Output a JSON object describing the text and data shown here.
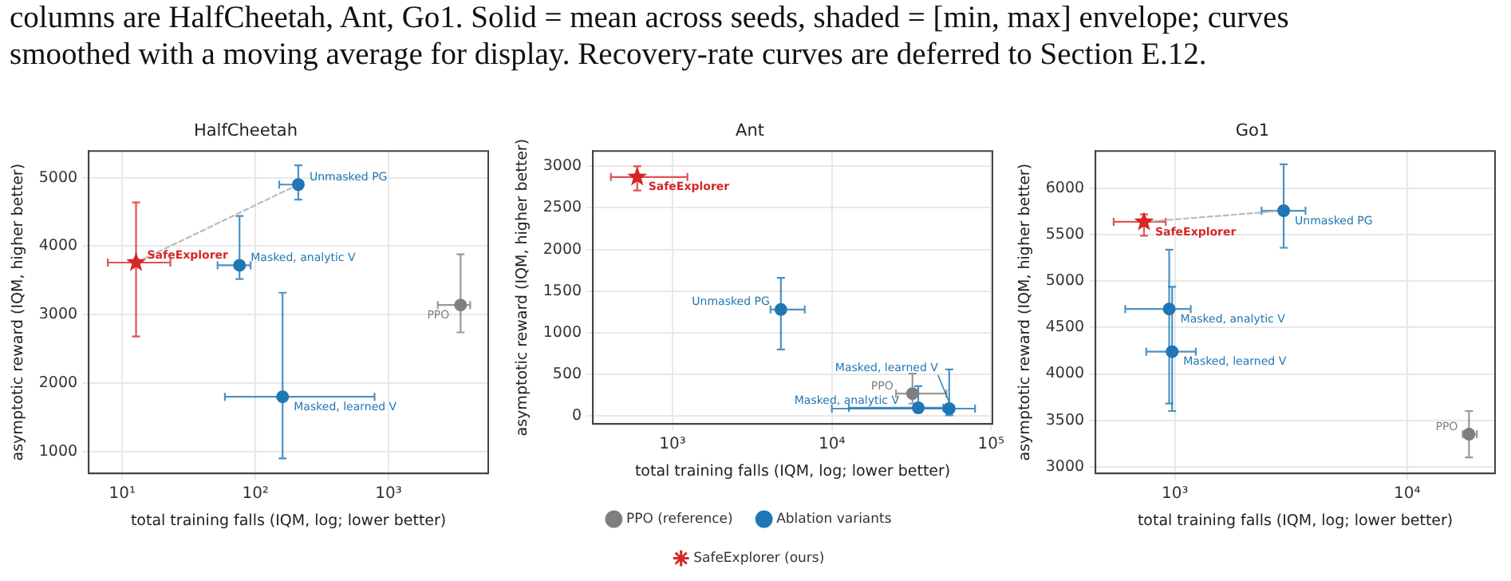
{
  "chart_data": [
    {
      "type": "scatter",
      "title": "HalfCheetah",
      "xlabel": "total training falls (IQM, log; lower better)",
      "ylabel": "asymptotic reward (IQM, higher better)",
      "log": "x",
      "grid": true,
      "legend": false,
      "xlim": [
        5.6,
        5600
      ],
      "xticks": [
        {
          "value": 10,
          "label": "10¹"
        },
        {
          "value": 100,
          "label": "10²"
        },
        {
          "value": 1000,
          "label": "10³"
        }
      ],
      "ylim": [
        680,
        5390
      ],
      "yticks": [
        1000,
        2000,
        3000,
        4000,
        5000
      ],
      "series": [
        {
          "type": "line",
          "color": "#bbbbbb",
          "marker": "none",
          "line_style": "dashed",
          "x": [
            12.7,
            210
          ],
          "values": [
            3760,
            4900
          ]
        },
        {
          "color": "#7f7f7f",
          "marker": "circle",
          "x": [
            3470
          ],
          "values": [
            3140
          ],
          "errors": [
            [
              2740,
              3880
            ]
          ],
          "xerrors": [
            [
              2340,
              4100
            ]
          ]
        },
        {
          "color": "#1f77b4",
          "marker": "circle",
          "x": [
            210,
            76,
            160
          ],
          "values": [
            4900,
            3720,
            1800
          ],
          "errors": [
            [
              4680,
              5180
            ],
            [
              3520,
              4440
            ],
            [
              900,
              3320
            ]
          ],
          "xerrors": [
            [
              151,
              220
            ],
            [
              52,
              92
            ],
            [
              59,
              785
            ]
          ]
        },
        {
          "color": "#d62728",
          "marker": "star",
          "x": [
            12.7
          ],
          "values": [
            3760
          ],
          "errors": [
            [
              2680,
              4640
            ]
          ],
          "xerrors": [
            [
              7.8,
              23
            ]
          ]
        }
      ],
      "annotations": [
        "columns are HalfCheetah, Ant, Go1. Solid = mean across seeds, shaded = [min, max] envelope; curves smoothed with a moving average for display. Recovery-rate curves are deferred to Section E.12.",
        {
          "text": "Unmasked PG",
          "x": 210,
          "y": 4900
        },
        {
          "text": "Masked, analytic V",
          "x": 76,
          "y": 3720
        },
        {
          "text": "Masked, learned V",
          "x": 160,
          "y": 1800
        },
        {
          "text": "PPO",
          "x": 3470,
          "y": 3140
        },
        {
          "text": "SafeExplorer",
          "x": 12.7,
          "y": 3760
        }
      ]
    },
    {
      "type": "scatter",
      "title": "Ant",
      "xlabel": "total training falls (IQM, log; lower better)",
      "ylabel": "asymptotic reward (IQM, higher better)",
      "log": "x",
      "grid": true,
      "legend": "bottom",
      "xlim": [
        316,
        102000
      ],
      "xticks": [
        {
          "value": 1000,
          "label": "10³"
        },
        {
          "value": 10000,
          "label": "10⁴"
        },
        {
          "value": 100000,
          "label": "10⁵"
        }
      ],
      "ylim": [
        -94,
        3183
      ],
      "yticks": [
        0,
        500,
        1000,
        1500,
        2000,
        2500,
        3000
      ],
      "series": [
        {
          "name": "PPO (reference)",
          "color": "#7f7f7f",
          "marker": "circle",
          "x": [
            32100
          ],
          "values": [
            270
          ],
          "errors": [
            [
              150,
              510
            ]
          ],
          "xerrors": [
            [
              25300,
              52400
            ]
          ]
        },
        {
          "name": "Ablation variants",
          "color": "#1f77b4",
          "marker": "circle",
          "x": [
            4790,
            34900,
            54600
          ],
          "values": [
            1280,
            100,
            90
          ],
          "errors": [
            [
              800,
              1660
            ],
            [
              40,
              360
            ],
            [
              10,
              560
            ]
          ],
          "xerrors": [
            [
              4120,
              6760
            ],
            [
              12800,
              50000
            ],
            [
              10000,
              79300
            ]
          ]
        },
        {
          "name": "SafeExplorer (ours)",
          "color": "#d62728",
          "marker": "star",
          "x": [
            600
          ],
          "values": [
            2870
          ],
          "errors": [
            [
              2710,
              3000
            ]
          ],
          "xerrors": [
            [
              410,
              1240
            ]
          ]
        }
      ],
      "annotations": [
        {
          "text": "Unmasked PG",
          "x": 4790,
          "y": 1280
        },
        {
          "text": "PPO",
          "x": 32100,
          "y": 270
        },
        {
          "text": "Masked, analytic V",
          "x": 34900,
          "y": 100
        },
        {
          "text": "Masked, learned V",
          "x": 54600,
          "y": 90
        },
        {
          "text": "SafeExplorer",
          "x": 600,
          "y": 2870
        }
      ]
    },
    {
      "type": "scatter",
      "title": "Go1",
      "xlabel": "total training falls (IQM, log; lower better)",
      "ylabel": "asymptotic reward (IQM, higher better)",
      "log": "x",
      "grid": true,
      "legend": false,
      "xlim": [
        455,
        23900
      ],
      "xticks": [
        {
          "value": 1000,
          "label": "10³"
        },
        {
          "value": 10000,
          "label": "10⁴"
        }
      ],
      "ylim": [
        2927,
        6404
      ],
      "yticks": [
        3000,
        3500,
        4000,
        4500,
        5000,
        5500,
        6000
      ],
      "series": [
        {
          "type": "line",
          "color": "#bbbbbb",
          "marker": "none",
          "line_style": "dashed",
          "x": [
            736,
            2940
          ],
          "values": [
            5640,
            5760
          ]
        },
        {
          "color": "#7f7f7f",
          "marker": "circle",
          "x": [
            18460
          ],
          "values": [
            3350
          ],
          "errors": [
            [
              3100,
              3600
            ]
          ],
          "xerrors": [
            [
              17350,
              19950
            ]
          ]
        },
        {
          "color": "#1f77b4",
          "marker": "circle",
          "x": [
            2940,
            945,
            973
          ],
          "values": [
            5760,
            4700,
            4240
          ],
          "errors": [
            [
              5360,
              6260
            ],
            [
              3680,
              5340
            ],
            [
              3600,
              4940
            ]
          ],
          "xerrors": [
            [
              2360,
              3650
            ],
            [
              611,
              1170
            ],
            [
              753,
              1230
            ]
          ]
        },
        {
          "color": "#d62728",
          "marker": "star",
          "x": [
            736
          ],
          "values": [
            5640
          ],
          "errors": [
            [
              5490,
              5720
            ]
          ],
          "xerrors": [
            [
              545,
              913
            ]
          ]
        }
      ],
      "annotations": [
        {
          "text": "Unmasked PG",
          "x": 2940,
          "y": 5760
        },
        {
          "text": "Masked, analytic V",
          "x": 945,
          "y": 4700
        },
        {
          "text": "Masked, learned V",
          "x": 973,
          "y": 4240
        },
        {
          "text": "PPO",
          "x": 18460,
          "y": 3350
        },
        {
          "text": "SafeExplorer",
          "x": 736,
          "y": 5640
        }
      ]
    }
  ]
}
